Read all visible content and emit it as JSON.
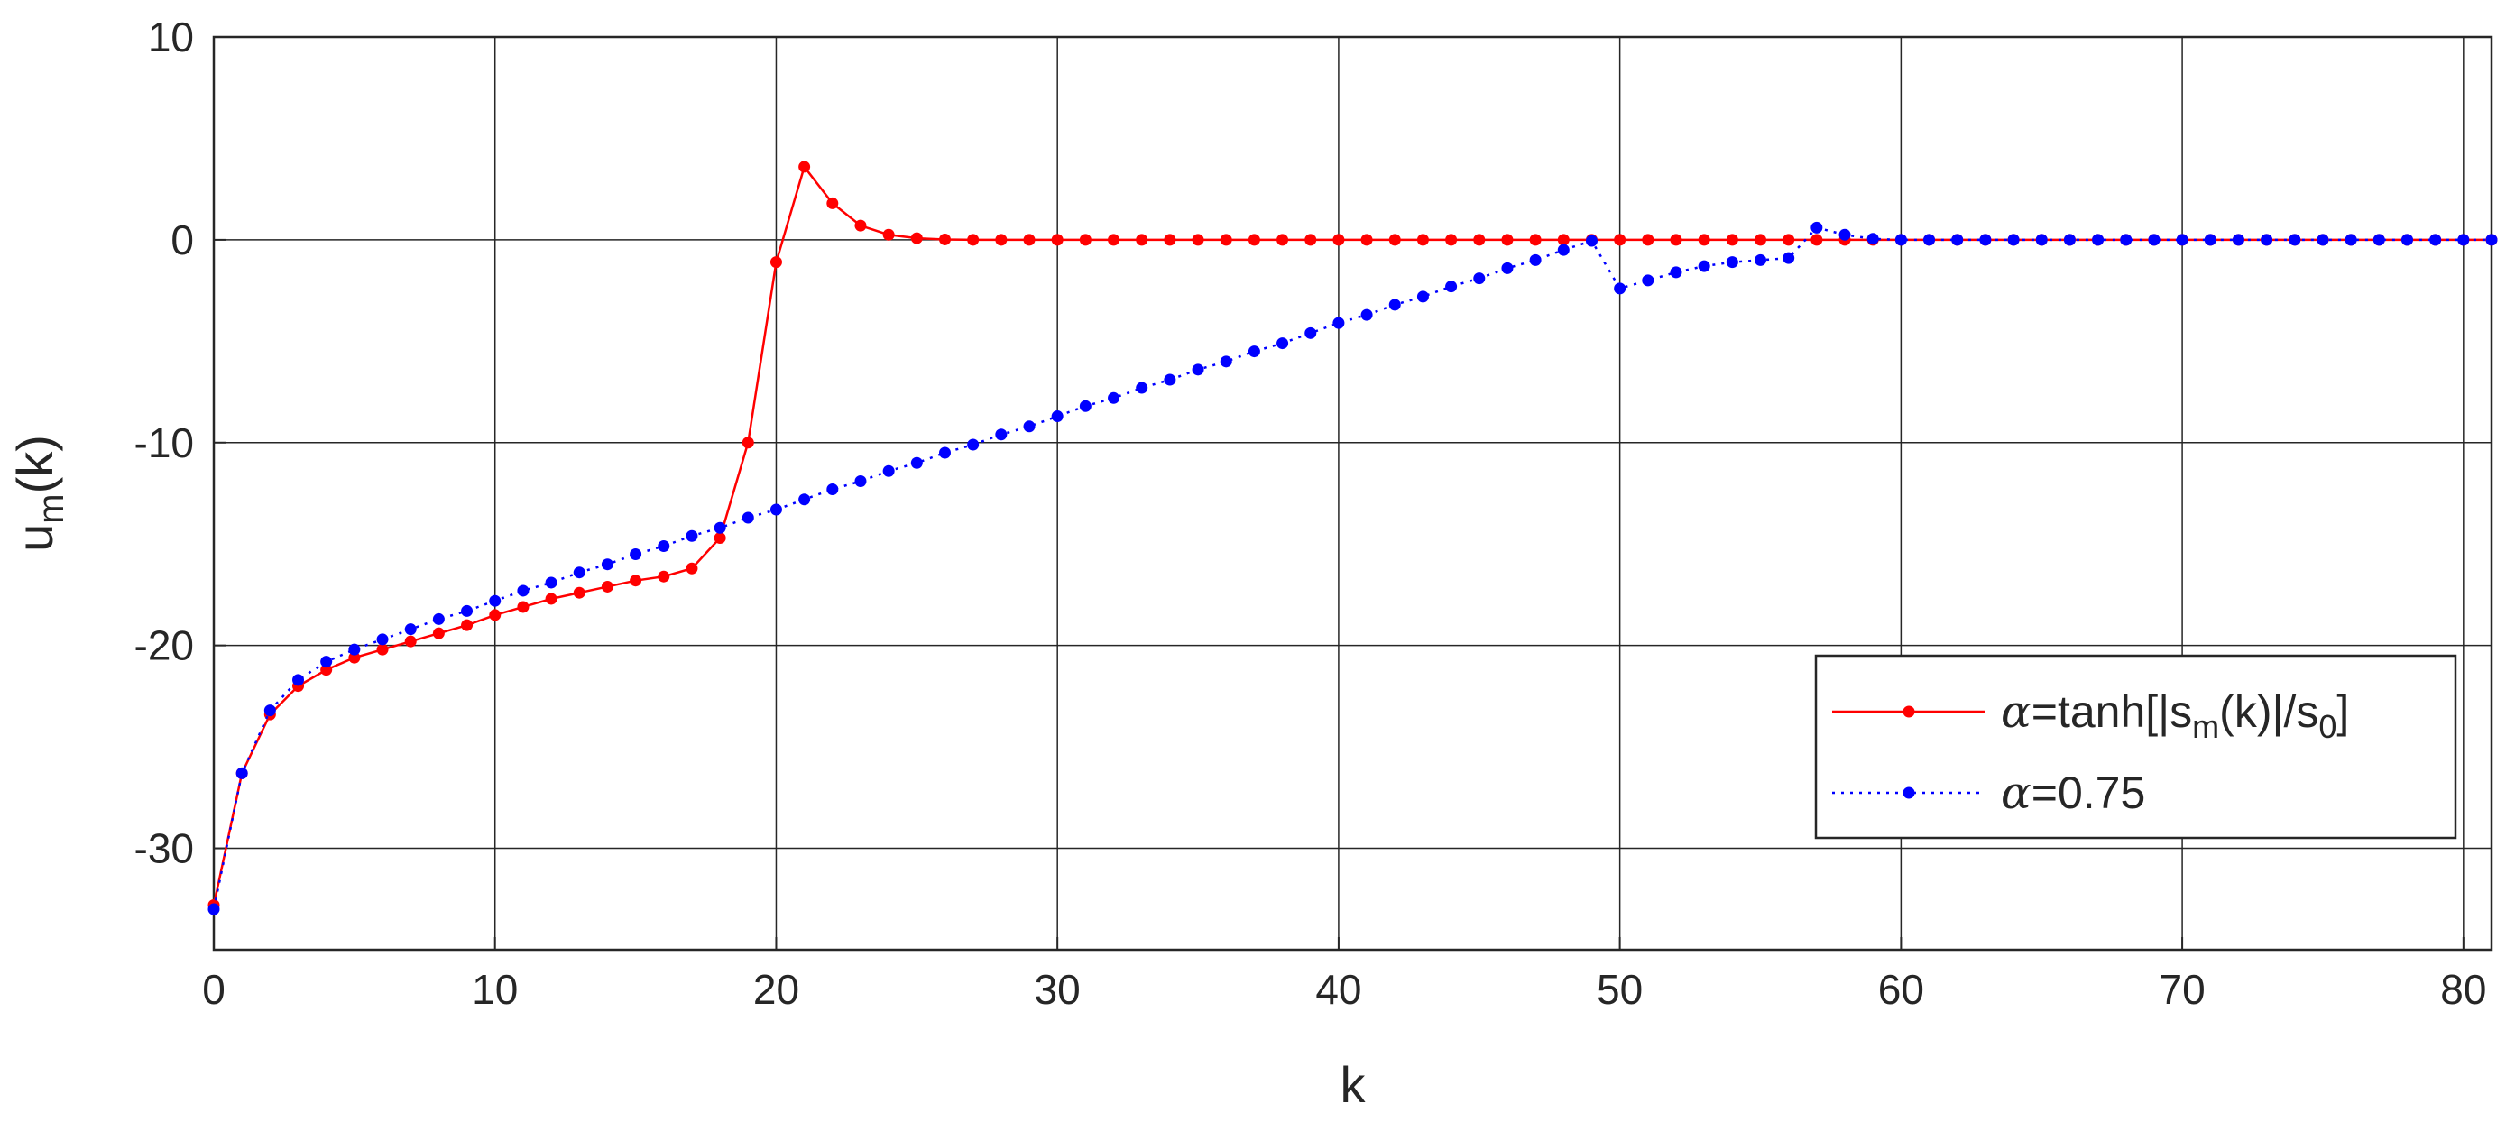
{
  "chart_data": {
    "type": "line",
    "xlabel": "k",
    "ylabel": "u",
    "ylabel_sub": "m",
    "ylabel_tail": "(k)",
    "xlim": [
      0,
      81
    ],
    "ylim": [
      -35,
      10
    ],
    "xticks": [
      0,
      10,
      20,
      30,
      40,
      50,
      60,
      70,
      80
    ],
    "yticks": [
      -30,
      -20,
      -10,
      0,
      10
    ],
    "xtick_labels": [
      "0",
      "10",
      "20",
      "30",
      "40",
      "50",
      "60",
      "70",
      "80"
    ],
    "ytick_labels": [
      "-30",
      "-20",
      "-10",
      "0",
      "10"
    ],
    "grid": true,
    "legend_position": "lower-right",
    "series": [
      {
        "color": "#ff0000",
        "line_style": "solid",
        "marker": "dot",
        "legend": {
          "pre": "=tanh[|s",
          "sub1": "m",
          "mid": "(k)|/s",
          "sub2": "0",
          "post": "]"
        },
        "x": [
          0,
          1,
          2,
          3,
          4,
          5,
          6,
          7,
          8,
          9,
          10,
          11,
          12,
          13,
          14,
          15,
          16,
          17,
          18,
          19,
          20,
          21,
          22,
          23,
          24,
          25,
          26,
          27,
          28,
          29,
          30,
          31,
          32,
          33,
          34,
          35,
          36,
          37,
          38,
          39,
          40,
          41,
          42,
          43,
          44,
          45,
          46,
          47,
          48,
          49,
          50,
          51,
          52,
          53,
          54,
          55,
          56,
          57,
          58,
          59,
          60,
          61,
          62,
          63,
          64,
          65,
          66,
          67,
          68,
          69,
          70,
          71,
          72,
          73,
          74,
          75,
          76,
          77,
          78,
          79,
          80,
          81
        ],
        "y": [
          -32.8,
          -26.3,
          -23.4,
          -22.0,
          -21.2,
          -20.6,
          -20.2,
          -19.8,
          -19.4,
          -19.0,
          -18.5,
          -18.1,
          -17.7,
          -17.4,
          -17.1,
          -16.8,
          -16.6,
          -16.2,
          -14.7,
          -10.0,
          -1.1,
          3.6,
          1.8,
          0.7,
          0.25,
          0.08,
          0.02,
          0,
          0,
          0,
          0,
          0,
          0,
          0,
          0,
          0,
          0,
          0,
          0,
          0,
          0,
          0,
          0,
          0,
          0,
          0,
          0,
          0,
          0,
          0,
          0,
          0,
          0,
          0,
          0,
          0,
          0,
          0,
          0,
          0,
          0,
          0,
          0,
          0,
          0,
          0,
          0,
          0,
          0,
          0,
          0,
          0,
          0,
          0,
          0,
          0,
          0,
          0,
          0,
          0,
          0,
          0
        ]
      },
      {
        "color": "#0000ff",
        "line_style": "dotted",
        "marker": "dot",
        "legend": {
          "pre": "=0.75"
        },
        "x": [
          0,
          1,
          2,
          3,
          4,
          5,
          6,
          7,
          8,
          9,
          10,
          11,
          12,
          13,
          14,
          15,
          16,
          17,
          18,
          19,
          20,
          21,
          22,
          23,
          24,
          25,
          26,
          27,
          28,
          29,
          30,
          31,
          32,
          33,
          34,
          35,
          36,
          37,
          38,
          39,
          40,
          41,
          42,
          43,
          44,
          45,
          46,
          47,
          48,
          49,
          50,
          51,
          52,
          53,
          54,
          55,
          56,
          57,
          58,
          59,
          60,
          61,
          62,
          63,
          64,
          65,
          66,
          67,
          68,
          69,
          70,
          71,
          72,
          73,
          74,
          75,
          76,
          77,
          78,
          79,
          80,
          81
        ],
        "y": [
          -33.0,
          -26.3,
          -23.2,
          -21.7,
          -20.8,
          -20.2,
          -19.7,
          -19.2,
          -18.7,
          -18.3,
          -17.8,
          -17.3,
          -16.9,
          -16.4,
          -16.0,
          -15.5,
          -15.1,
          -14.6,
          -14.2,
          -13.7,
          -13.3,
          -12.8,
          -12.3,
          -11.9,
          -11.4,
          -11.0,
          -10.5,
          -10.1,
          -9.6,
          -9.2,
          -8.7,
          -8.2,
          -7.8,
          -7.3,
          -6.9,
          -6.4,
          -6.0,
          -5.5,
          -5.1,
          -4.6,
          -4.1,
          -3.7,
          -3.2,
          -2.8,
          -2.3,
          -1.9,
          -1.4,
          -1.0,
          -0.5,
          -0.05,
          -2.4,
          -2.0,
          -1.6,
          -1.3,
          -1.1,
          -1.0,
          -0.9,
          0.6,
          0.25,
          0.05,
          0,
          0,
          0,
          0,
          0,
          0,
          0,
          0,
          0,
          0,
          0,
          0,
          0,
          0,
          0,
          0,
          0,
          0,
          0,
          0,
          0,
          0
        ]
      }
    ]
  },
  "legend_symbol": "α"
}
